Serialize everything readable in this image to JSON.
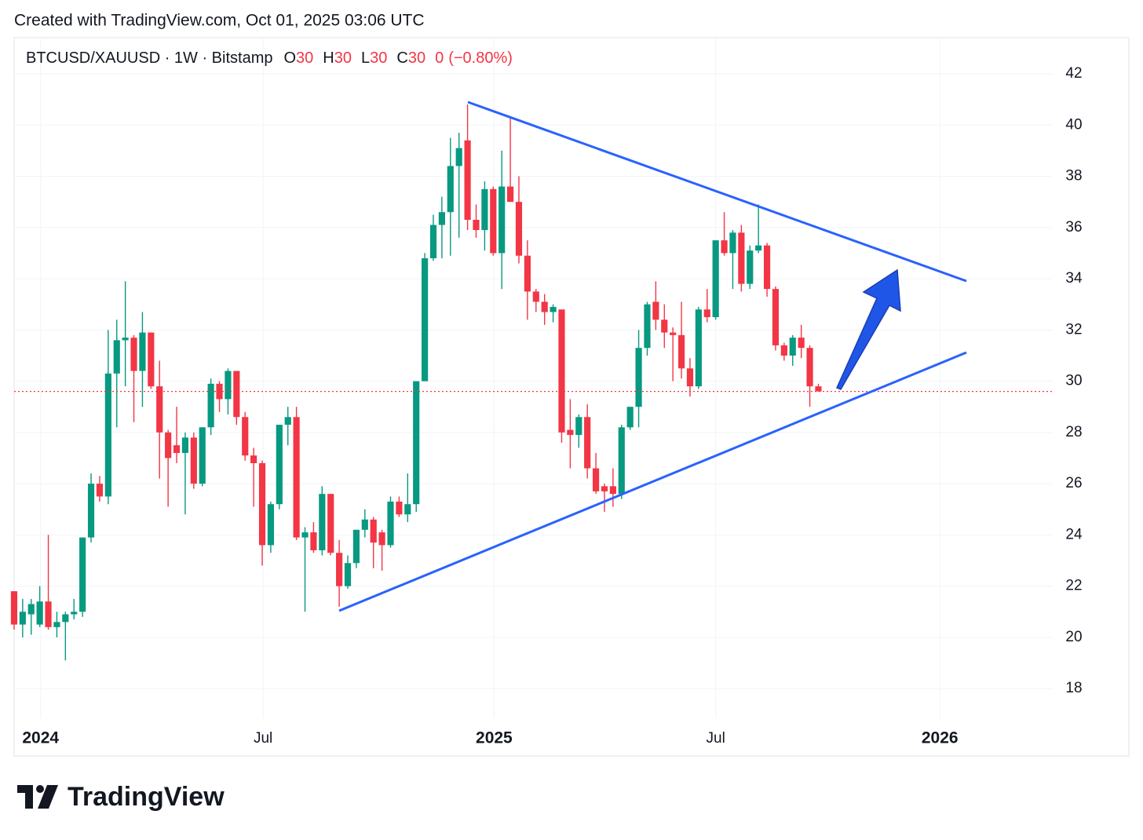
{
  "attribution": "Created with TradingView.com, Oct 01, 2025 03:06 UTC",
  "brand": "TradingView",
  "chart_data": {
    "type": "candlestick",
    "symbol": "BTCUSD/XAUUSD · 1W · Bitstamp",
    "ohlc_legend": [
      {
        "key": "O",
        "value": 30
      },
      {
        "key": "H",
        "value": 30
      },
      {
        "key": "L",
        "value": 30
      },
      {
        "key": "C",
        "value": 30
      }
    ],
    "change": 0,
    "change_percent": {
      "value": -0.8,
      "label": "(−0.80%)"
    },
    "up_color": "#089981",
    "down_color": "#f23645",
    "open": [
      21.8,
      20.5,
      20.9,
      20.5,
      21.4,
      20.4,
      20.6,
      20.9,
      21.0,
      23.9,
      26.0,
      25.5,
      30.3,
      31.6,
      31.7,
      30.4,
      31.9,
      29.8,
      28.0,
      27.5,
      27.2,
      27.8,
      26.0,
      28.2,
      29.9,
      29.3,
      30.4,
      28.6,
      27.1,
      26.8,
      23.6,
      25.2,
      28.3,
      28.6,
      23.9,
      24.1,
      23.4,
      25.6,
      23.3,
      22.0,
      22.9,
      24.2,
      24.6,
      24.1,
      23.6,
      25.3,
      24.8,
      25.2,
      30.0,
      34.8,
      36.1,
      36.6,
      38.4,
      39.4,
      36.3,
      35.9,
      37.5,
      35.0,
      37.6,
      37.0,
      34.9,
      33.5,
      33.1,
      32.7,
      32.8,
      28.1,
      27.9,
      28.6,
      26.6,
      25.9,
      25.9,
      25.6,
      28.2,
      29.0,
      31.3,
      33.1,
      32.4,
      31.9,
      31.8,
      30.5,
      29.8,
      32.8,
      32.5,
      35.5,
      35.0,
      35.8,
      33.8,
      35.1,
      35.3,
      33.6,
      31.4,
      31.0,
      31.7,
      31.3,
      29.8
    ],
    "high": [
      21.8,
      21.5,
      21.5,
      22.0,
      24.0,
      21.0,
      21.0,
      21.5,
      23.9,
      26.4,
      26.3,
      32.0,
      32.4,
      33.9,
      31.8,
      32.7,
      31.9,
      30.8,
      28.1,
      29.0,
      28.0,
      28.0,
      28.2,
      30.1,
      30.0,
      30.5,
      30.4,
      28.8,
      27.4,
      26.9,
      25.3,
      28.3,
      29.0,
      29.0,
      24.3,
      24.5,
      25.9,
      25.6,
      23.8,
      23.2,
      24.2,
      25.0,
      24.7,
      24.2,
      25.5,
      25.5,
      26.4,
      30.0,
      35.0,
      36.5,
      37.2,
      39.5,
      39.7,
      40.8,
      36.9,
      37.8,
      37.6,
      39.0,
      40.3,
      38.0,
      35.5,
      33.6,
      33.4,
      33.0,
      32.8,
      29.3,
      28.7,
      29.1,
      27.2,
      26.0,
      26.6,
      28.3,
      29.0,
      32.0,
      33.1,
      33.9,
      33.0,
      32.1,
      33.1,
      30.9,
      32.9,
      33.6,
      35.5,
      36.6,
      35.9,
      36.1,
      35.3,
      36.9,
      35.4,
      33.7,
      31.5,
      31.8,
      32.2,
      31.4,
      29.9
    ],
    "low": [
      20.3,
      20.0,
      20.1,
      20.4,
      20.3,
      20.0,
      19.1,
      20.7,
      20.8,
      23.7,
      25.3,
      25.2,
      28.2,
      29.8,
      28.4,
      29.0,
      29.7,
      26.2,
      25.1,
      26.8,
      24.8,
      25.8,
      25.9,
      27.9,
      28.8,
      28.7,
      28.3,
      26.9,
      25.1,
      22.8,
      23.3,
      25.0,
      27.5,
      23.8,
      21.0,
      23.3,
      23.2,
      23.2,
      21.2,
      21.9,
      22.7,
      23.9,
      22.7,
      22.6,
      23.5,
      24.7,
      24.5,
      24.9,
      30.0,
      34.7,
      34.8,
      34.9,
      35.6,
      35.9,
      35.6,
      35.1,
      34.9,
      33.6,
      37.0,
      34.6,
      32.4,
      32.7,
      32.2,
      32.3,
      27.6,
      26.6,
      27.4,
      26.2,
      25.6,
      24.9,
      25.1,
      25.4,
      28.1,
      28.2,
      31.0,
      32.0,
      31.3,
      30.0,
      30.1,
      29.4,
      29.7,
      32.3,
      32.4,
      34.9,
      33.6,
      33.5,
      33.6,
      35.0,
      33.3,
      31.2,
      30.8,
      30.6,
      30.9,
      29.0,
      29.6
    ],
    "close": [
      20.5,
      21.0,
      21.3,
      21.4,
      20.4,
      20.6,
      20.9,
      21.0,
      23.9,
      26.0,
      25.5,
      30.3,
      31.6,
      31.7,
      30.4,
      31.9,
      29.8,
      28.0,
      27.0,
      27.2,
      27.8,
      26.0,
      28.2,
      29.9,
      29.3,
      30.4,
      28.6,
      27.1,
      26.8,
      23.6,
      25.2,
      28.3,
      28.6,
      23.9,
      24.1,
      23.4,
      25.6,
      23.3,
      22.0,
      22.9,
      24.2,
      24.6,
      23.7,
      23.6,
      25.3,
      24.8,
      25.2,
      30.0,
      34.8,
      36.1,
      36.6,
      38.4,
      39.1,
      36.3,
      35.9,
      37.5,
      35.0,
      37.6,
      37.0,
      34.9,
      33.5,
      33.1,
      32.7,
      32.9,
      28.0,
      27.9,
      28.6,
      26.6,
      25.7,
      25.7,
      25.6,
      28.2,
      29.0,
      31.3,
      33.0,
      32.4,
      31.9,
      31.8,
      30.5,
      29.8,
      32.8,
      32.5,
      35.5,
      35.0,
      35.8,
      33.8,
      35.1,
      35.3,
      33.6,
      31.4,
      31.0,
      31.7,
      31.3,
      29.8,
      29.6
    ],
    "xlim": [
      -0.5,
      121.3
    ],
    "xticks": [
      {
        "value": 3.1,
        "label": "2024"
      },
      {
        "value": 29.1,
        "label": "Jul"
      },
      {
        "value": 56.1,
        "label": "2025"
      },
      {
        "value": 82.0,
        "label": "Jul"
      },
      {
        "value": 108.2,
        "label": "2026"
      }
    ],
    "ylim": [
      16.84,
      43.41
    ],
    "yticks": [
      18,
      20,
      22,
      24,
      26,
      28,
      30,
      32,
      34,
      36,
      38,
      40,
      42
    ],
    "grid": true
  }
}
